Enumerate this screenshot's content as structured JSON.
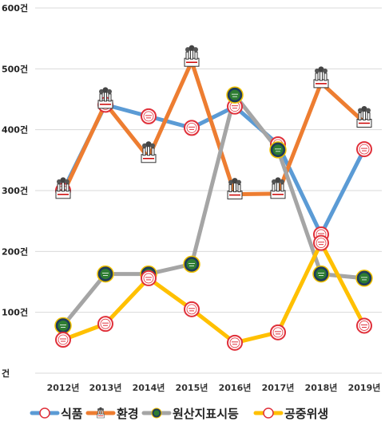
{
  "chart_data": {
    "type": "line",
    "categories": [
      "2012년",
      "2013년",
      "2014년",
      "2015년",
      "2016년",
      "2017년",
      "2018년",
      "2019년"
    ],
    "series": [
      {
        "name": "식품",
        "color": "#5b9bd5",
        "marker": "red-circle-badge",
        "values": [
          300,
          441,
          422,
          403,
          438,
          376,
          228,
          368
        ]
      },
      {
        "name": "환경",
        "color": "#ed7d31",
        "marker": "factory-icon",
        "values": [
          295,
          443,
          354,
          512,
          294,
          295,
          477,
          412
        ]
      },
      {
        "name": "원산지표시등",
        "color": "#a5a5a5",
        "marker": "green-circle-badge",
        "values": [
          78,
          163,
          163,
          179,
          457,
          367,
          163,
          156
        ]
      },
      {
        "name": "공중위생",
        "color": "#ffc000",
        "marker": "red-circle-badge",
        "values": [
          55,
          81,
          156,
          105,
          50,
          67,
          214,
          78
        ]
      }
    ],
    "yticks": [
      "건",
      "100건",
      "200건",
      "300건",
      "400건",
      "500건",
      "600건"
    ],
    "ylim": [
      0,
      600
    ],
    "grid": true,
    "legend": "bottom"
  }
}
